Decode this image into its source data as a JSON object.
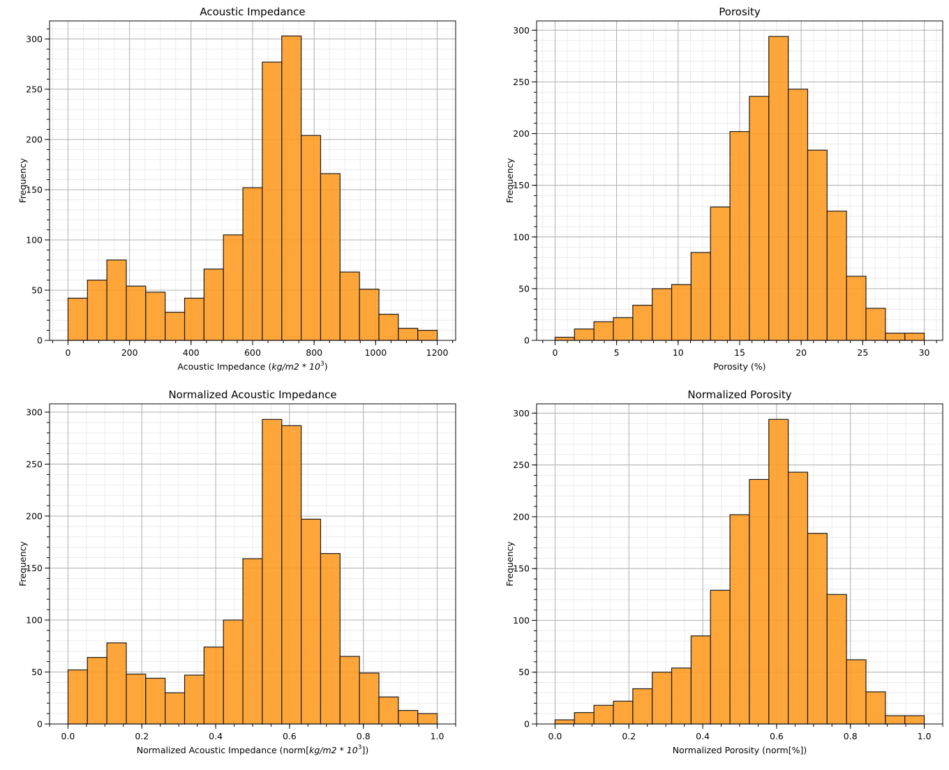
{
  "chart_data": [
    {
      "type": "bar",
      "title": "Acoustic Impedance",
      "xlabel": "Acoustic Impedance (kg/m2 * 10^3)",
      "xlabel_main": "Acoustic Impedance (",
      "xlabel_math": "kg/m2 * 10",
      "xlabel_sup": "3",
      "xlabel_end": ")",
      "ylabel": "Frequency",
      "xrange": [
        0,
        1200
      ],
      "xlim": [
        -60,
        1260
      ],
      "ylim": [
        0,
        318
      ],
      "xticks": [
        0,
        200,
        400,
        600,
        800,
        1000,
        1200
      ],
      "xtick_labels": [
        "0",
        "200",
        "400",
        "600",
        "800",
        "1000",
        "1200"
      ],
      "xminor": 50,
      "yticks": [
        0,
        50,
        100,
        150,
        200,
        250,
        300
      ],
      "ytick_labels": [
        "0",
        "50",
        "100",
        "150",
        "200",
        "250",
        "300"
      ],
      "yminor": 10,
      "values": [
        42,
        60,
        80,
        54,
        48,
        28,
        42,
        71,
        105,
        152,
        277,
        303,
        204,
        166,
        68,
        51,
        26,
        12,
        10
      ],
      "grid": true,
      "color": "#ff9a1f",
      "edgecolor": "#1a1a1a"
    },
    {
      "type": "bar",
      "title": "Porosity",
      "xlabel": "Porosity (%)",
      "xlabel_main": "Porosity (%)",
      "ylabel": "Frequency",
      "xrange": [
        0,
        30
      ],
      "xlim": [
        -1.5,
        31.5
      ],
      "ylim": [
        0,
        309
      ],
      "xticks": [
        0,
        5,
        10,
        15,
        20,
        25,
        30
      ],
      "xtick_labels": [
        "0",
        "5",
        "10",
        "15",
        "20",
        "25",
        "30"
      ],
      "xminor": 1,
      "yticks": [
        0,
        50,
        100,
        150,
        200,
        250,
        300
      ],
      "ytick_labels": [
        "0",
        "50",
        "100",
        "150",
        "200",
        "250",
        "300"
      ],
      "yminor": 10,
      "values": [
        3,
        11,
        18,
        22,
        34,
        50,
        54,
        85,
        129,
        202,
        236,
        294,
        243,
        184,
        125,
        62,
        31,
        7,
        7
      ],
      "grid": true,
      "color": "#ff9a1f",
      "edgecolor": "#1a1a1a"
    },
    {
      "type": "bar",
      "title": "Normalized Acoustic Impedance",
      "xlabel": "Normalized Acoustic Impedance (norm[kg/m2 * 10^3])",
      "xlabel_main": "Normalized Acoustic Impedance (norm[",
      "xlabel_math": "kg/m2 * 10",
      "xlabel_sup": "3",
      "xlabel_end": "])",
      "ylabel": "Frequency",
      "xrange": [
        0,
        1
      ],
      "xlim": [
        -0.05,
        1.05
      ],
      "ylim": [
        0,
        308
      ],
      "xticks": [
        0,
        0.2,
        0.4,
        0.6,
        0.8,
        1.0
      ],
      "xtick_labels": [
        "0.0",
        "0.2",
        "0.4",
        "0.6",
        "0.8",
        "1.0"
      ],
      "xminor": 0.05,
      "yticks": [
        0,
        50,
        100,
        150,
        200,
        250,
        300
      ],
      "ytick_labels": [
        "0",
        "50",
        "100",
        "150",
        "200",
        "250",
        "300"
      ],
      "yminor": 10,
      "values": [
        52,
        64,
        78,
        48,
        44,
        30,
        47,
        74,
        100,
        159,
        293,
        287,
        197,
        164,
        65,
        49,
        26,
        13,
        10
      ],
      "grid": true,
      "color": "#ff9a1f",
      "edgecolor": "#1a1a1a"
    },
    {
      "type": "bar",
      "title": "Normalized Porosity",
      "xlabel": "Normalized Porosity (norm[%])",
      "xlabel_main": "Normalized Porosity (norm[%])",
      "ylabel": "Frequency",
      "xrange": [
        0,
        1
      ],
      "xlim": [
        -0.05,
        1.05
      ],
      "ylim": [
        0,
        309
      ],
      "xticks": [
        0,
        0.2,
        0.4,
        0.6,
        0.8,
        1.0
      ],
      "xtick_labels": [
        "0.0",
        "0.2",
        "0.4",
        "0.6",
        "0.8",
        "1.0"
      ],
      "xminor": 0.05,
      "yticks": [
        0,
        50,
        100,
        150,
        200,
        250,
        300
      ],
      "ytick_labels": [
        "0",
        "50",
        "100",
        "150",
        "200",
        "250",
        "300"
      ],
      "yminor": 10,
      "values": [
        4,
        11,
        18,
        22,
        34,
        50,
        54,
        85,
        129,
        202,
        236,
        294,
        243,
        184,
        125,
        62,
        31,
        8,
        8
      ],
      "grid": true,
      "color": "#ff9a1f",
      "edgecolor": "#1a1a1a"
    }
  ]
}
